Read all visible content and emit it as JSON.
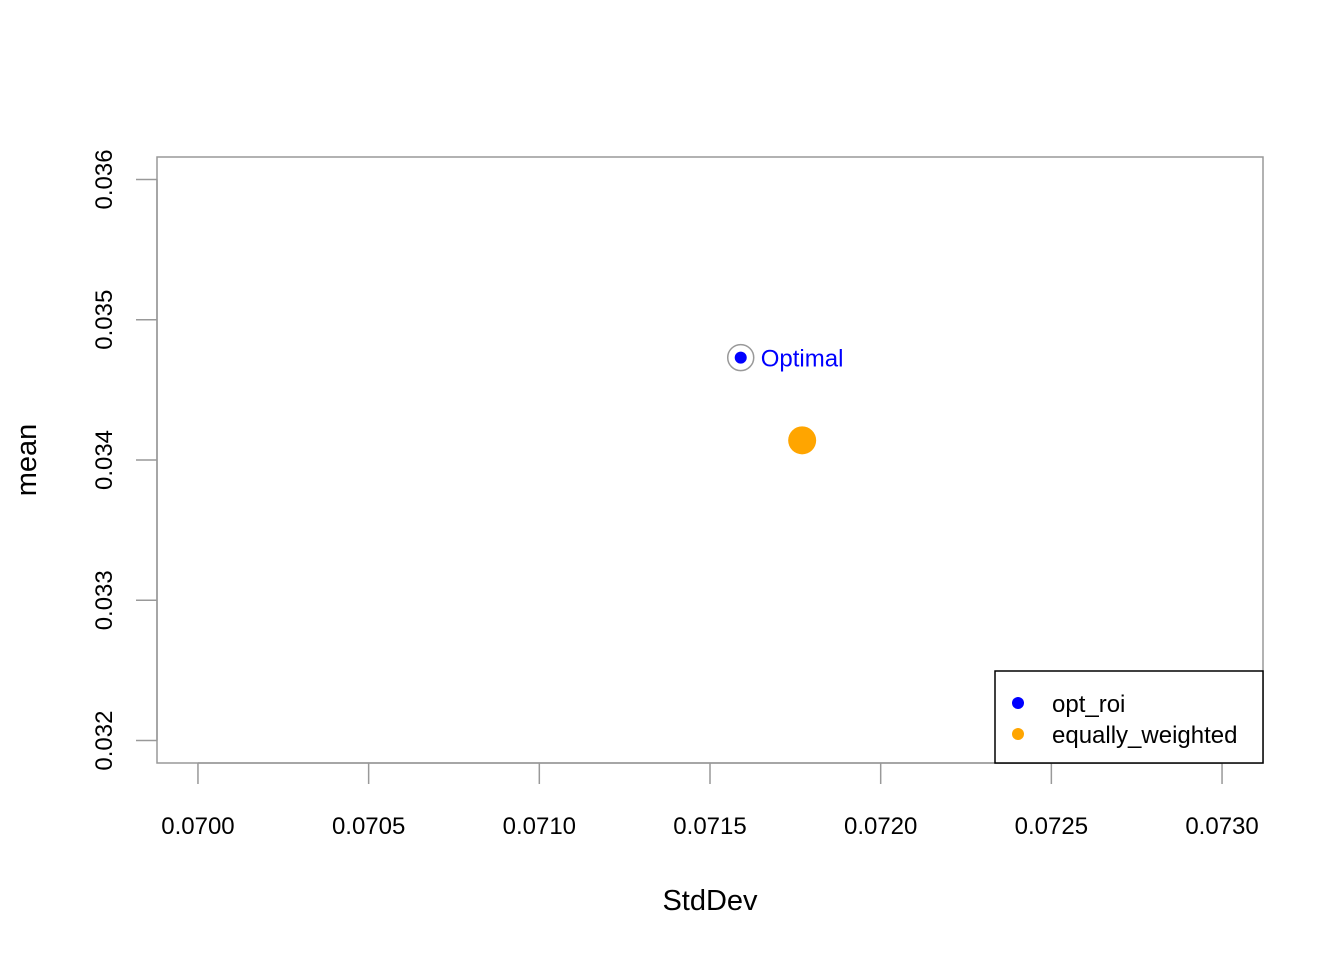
{
  "chart_data": {
    "type": "scatter",
    "xlabel": "StdDev",
    "ylabel": "mean",
    "xlim": [
      0.06988,
      0.07312
    ],
    "ylim": [
      0.03184,
      0.03616
    ],
    "x_ticks": [
      "0.0700",
      "0.0705",
      "0.0710",
      "0.0715",
      "0.0720",
      "0.0725",
      "0.0730"
    ],
    "x_tick_values": [
      0.07,
      0.0705,
      0.071,
      0.0715,
      0.072,
      0.0725,
      0.073
    ],
    "y_ticks": [
      "0.032",
      "0.033",
      "0.034",
      "0.035",
      "0.036"
    ],
    "y_tick_values": [
      0.032,
      0.033,
      0.034,
      0.035,
      0.036
    ],
    "series": [
      {
        "name": "opt_roi",
        "color": "#0000ff",
        "points": [
          {
            "x": 0.07159,
            "y": 0.03473
          }
        ],
        "highlighted": true
      },
      {
        "name": "equally_weighted",
        "color": "#ffa500",
        "points": [
          {
            "x": 0.07177,
            "y": 0.03414
          }
        ],
        "highlighted": false
      }
    ],
    "annotations": [
      {
        "text": "Optimal",
        "color": "#0000ff",
        "x": 0.07159,
        "y": 0.03473
      }
    ],
    "legend": {
      "position": "bottom-right",
      "entries": [
        {
          "label": "opt_roi",
          "color": "#0000ff"
        },
        {
          "label": "equally_weighted",
          "color": "#ffa500"
        }
      ]
    },
    "grid": false
  }
}
